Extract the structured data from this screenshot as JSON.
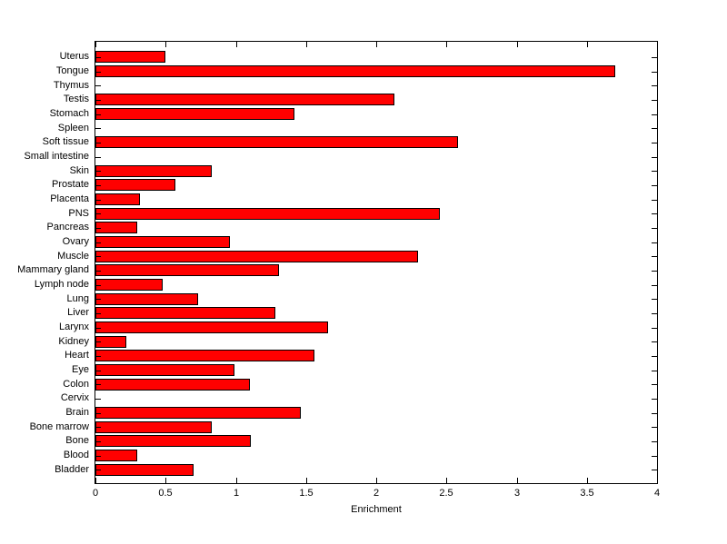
{
  "figure": {
    "background": "#ffffff"
  },
  "chart_data": {
    "type": "bar",
    "orientation": "horizontal",
    "title": "",
    "xlabel": "Enrichment",
    "ylabel": "",
    "xlim": [
      0,
      4
    ],
    "xtick_values": [
      0,
      0.5,
      1,
      1.5,
      2,
      2.5,
      3,
      3.5,
      4
    ],
    "xtick_labels": [
      "0",
      "0.5",
      "1",
      "1.5",
      "2",
      "2.5",
      "3",
      "3.5",
      "4"
    ],
    "grid": false,
    "legend": null,
    "bar_color": "#ff0000",
    "bar_edge_color": "#000000",
    "axis_box": true,
    "categories_top_to_bottom": [
      "Uterus",
      "Tongue",
      "Thymus",
      "Testis",
      "Stomach",
      "Spleen",
      "Soft tissue",
      "Small intestine",
      "Skin",
      "Prostate",
      "Placenta",
      "PNS",
      "Pancreas",
      "Ovary",
      "Muscle",
      "Mammary gland",
      "Lymph node",
      "Lung",
      "Liver",
      "Larynx",
      "Kidney",
      "Heart",
      "Eye",
      "Colon",
      "Cervix",
      "Brain",
      "Bone marrow",
      "Bone",
      "Blood",
      "Bladder"
    ],
    "values": [
      0.5,
      3.7,
      0,
      2.13,
      1.42,
      0,
      2.58,
      0,
      0.83,
      0.57,
      0.32,
      2.45,
      0.3,
      0.96,
      2.3,
      1.31,
      0.48,
      0.73,
      1.28,
      1.66,
      0.22,
      1.56,
      0.99,
      1.1,
      0,
      1.46,
      0.83,
      1.11,
      0.3,
      0.7
    ]
  }
}
